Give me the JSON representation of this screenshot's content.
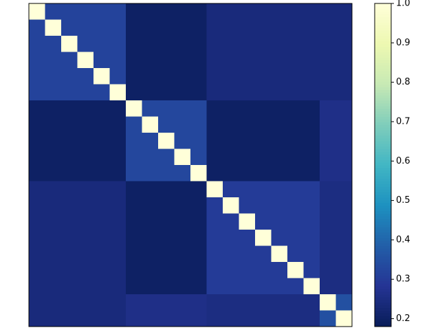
{
  "chart_data": {
    "type": "heatmap",
    "colormap": "YlGnBu_r",
    "zlim": [
      0.18,
      1.0
    ],
    "zticks": [
      0.2,
      0.3,
      0.4,
      0.5,
      0.6,
      0.7,
      0.8,
      0.9,
      {
        "value": 1.0,
        "label": "1.0"
      }
    ],
    "z": [
      [
        1,
        0.32,
        0.32,
        0.32,
        0.32,
        0.32,
        0.2,
        0.2,
        0.2,
        0.2,
        0.2,
        0.24,
        0.24,
        0.24,
        0.24,
        0.24,
        0.24,
        0.24,
        0.24,
        0.24
      ],
      [
        0.32,
        1,
        0.32,
        0.32,
        0.32,
        0.32,
        0.2,
        0.2,
        0.2,
        0.2,
        0.2,
        0.24,
        0.24,
        0.24,
        0.24,
        0.24,
        0.24,
        0.24,
        0.24,
        0.24
      ],
      [
        0.32,
        0.32,
        1,
        0.32,
        0.32,
        0.32,
        0.2,
        0.2,
        0.2,
        0.2,
        0.2,
        0.24,
        0.24,
        0.24,
        0.24,
        0.24,
        0.24,
        0.24,
        0.24,
        0.24
      ],
      [
        0.32,
        0.32,
        0.32,
        1,
        0.32,
        0.32,
        0.2,
        0.2,
        0.2,
        0.2,
        0.2,
        0.24,
        0.24,
        0.24,
        0.24,
        0.24,
        0.24,
        0.24,
        0.24,
        0.24
      ],
      [
        0.32,
        0.32,
        0.32,
        0.32,
        1,
        0.32,
        0.2,
        0.2,
        0.2,
        0.2,
        0.2,
        0.24,
        0.24,
        0.24,
        0.24,
        0.24,
        0.24,
        0.24,
        0.24,
        0.24
      ],
      [
        0.32,
        0.32,
        0.32,
        0.32,
        0.32,
        1,
        0.2,
        0.2,
        0.2,
        0.2,
        0.2,
        0.24,
        0.24,
        0.24,
        0.24,
        0.24,
        0.24,
        0.24,
        0.24,
        0.24
      ],
      [
        0.2,
        0.2,
        0.2,
        0.2,
        0.2,
        0.2,
        1,
        0.33,
        0.33,
        0.33,
        0.33,
        0.2,
        0.2,
        0.2,
        0.2,
        0.2,
        0.2,
        0.2,
        0.26,
        0.26
      ],
      [
        0.2,
        0.2,
        0.2,
        0.2,
        0.2,
        0.2,
        0.33,
        1,
        0.33,
        0.33,
        0.33,
        0.2,
        0.2,
        0.2,
        0.2,
        0.2,
        0.2,
        0.2,
        0.26,
        0.26
      ],
      [
        0.2,
        0.2,
        0.2,
        0.2,
        0.2,
        0.2,
        0.33,
        0.33,
        1,
        0.33,
        0.33,
        0.2,
        0.2,
        0.2,
        0.2,
        0.2,
        0.2,
        0.2,
        0.26,
        0.26
      ],
      [
        0.2,
        0.2,
        0.2,
        0.2,
        0.2,
        0.2,
        0.33,
        0.33,
        0.33,
        1,
        0.33,
        0.2,
        0.2,
        0.2,
        0.2,
        0.2,
        0.2,
        0.2,
        0.26,
        0.26
      ],
      [
        0.2,
        0.2,
        0.2,
        0.2,
        0.2,
        0.2,
        0.33,
        0.33,
        0.33,
        0.33,
        1,
        0.2,
        0.2,
        0.2,
        0.2,
        0.2,
        0.2,
        0.2,
        0.26,
        0.26
      ],
      [
        0.24,
        0.24,
        0.24,
        0.24,
        0.24,
        0.24,
        0.2,
        0.2,
        0.2,
        0.2,
        0.2,
        1,
        0.3,
        0.3,
        0.3,
        0.3,
        0.3,
        0.3,
        0.25,
        0.25
      ],
      [
        0.24,
        0.24,
        0.24,
        0.24,
        0.24,
        0.24,
        0.2,
        0.2,
        0.2,
        0.2,
        0.2,
        0.3,
        1,
        0.3,
        0.3,
        0.3,
        0.3,
        0.3,
        0.25,
        0.25
      ],
      [
        0.24,
        0.24,
        0.24,
        0.24,
        0.24,
        0.24,
        0.2,
        0.2,
        0.2,
        0.2,
        0.2,
        0.3,
        0.3,
        1,
        0.3,
        0.3,
        0.3,
        0.3,
        0.25,
        0.25
      ],
      [
        0.24,
        0.24,
        0.24,
        0.24,
        0.24,
        0.24,
        0.2,
        0.2,
        0.2,
        0.2,
        0.2,
        0.3,
        0.3,
        0.3,
        1,
        0.3,
        0.3,
        0.3,
        0.25,
        0.25
      ],
      [
        0.24,
        0.24,
        0.24,
        0.24,
        0.24,
        0.24,
        0.2,
        0.2,
        0.2,
        0.2,
        0.2,
        0.3,
        0.3,
        0.3,
        0.3,
        1,
        0.3,
        0.3,
        0.25,
        0.25
      ],
      [
        0.24,
        0.24,
        0.24,
        0.24,
        0.24,
        0.24,
        0.2,
        0.2,
        0.2,
        0.2,
        0.2,
        0.3,
        0.3,
        0.3,
        0.3,
        0.3,
        1,
        0.3,
        0.25,
        0.25
      ],
      [
        0.24,
        0.24,
        0.24,
        0.24,
        0.24,
        0.24,
        0.2,
        0.2,
        0.2,
        0.2,
        0.2,
        0.3,
        0.3,
        0.3,
        0.3,
        0.3,
        0.3,
        1,
        0.25,
        0.25
      ],
      [
        0.24,
        0.24,
        0.24,
        0.24,
        0.24,
        0.24,
        0.26,
        0.26,
        0.26,
        0.26,
        0.26,
        0.25,
        0.25,
        0.25,
        0.25,
        0.25,
        0.25,
        0.25,
        1,
        0.35
      ],
      [
        0.24,
        0.24,
        0.24,
        0.24,
        0.24,
        0.24,
        0.26,
        0.26,
        0.26,
        0.26,
        0.26,
        0.25,
        0.25,
        0.25,
        0.25,
        0.25,
        0.25,
        0.25,
        0.35,
        1
      ]
    ]
  }
}
